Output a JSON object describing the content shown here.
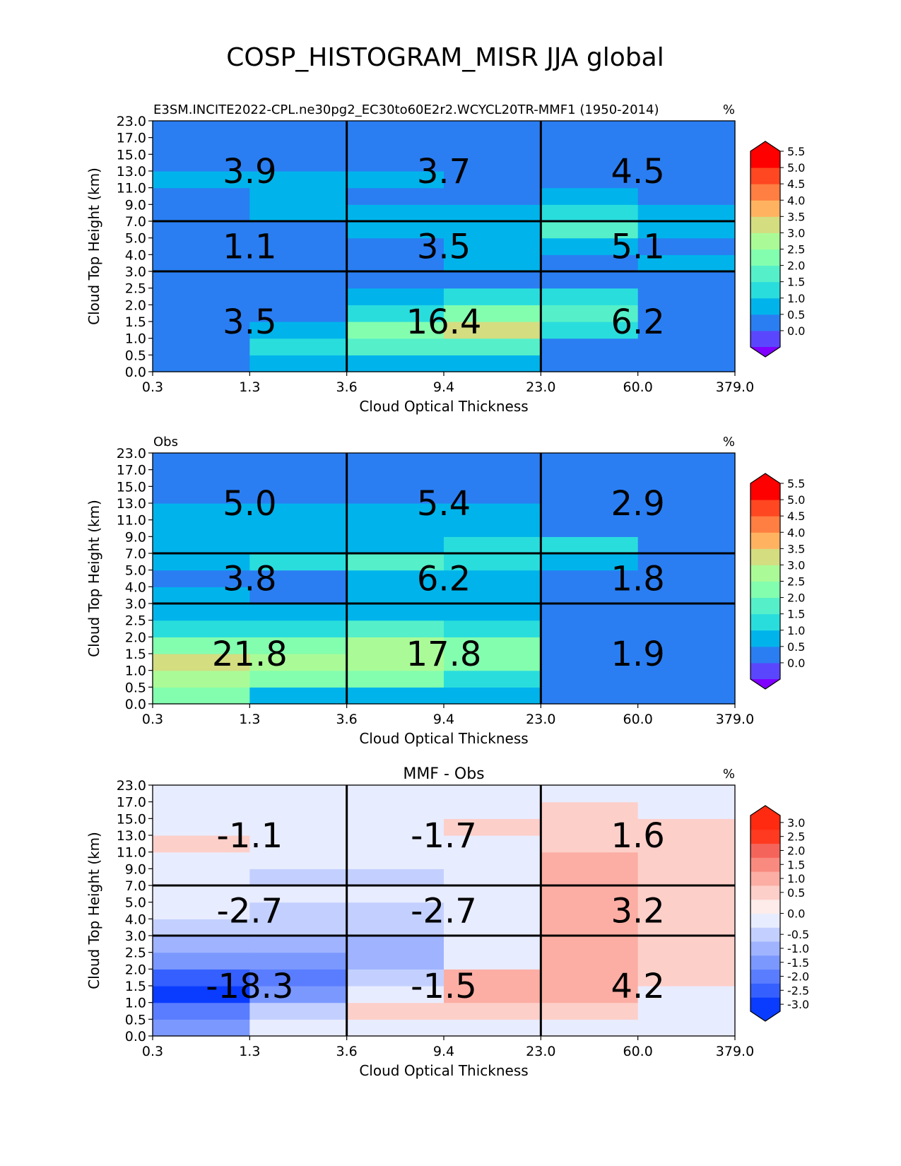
{
  "figure": {
    "title": "COSP_HISTOGRAM_MISR JJA global"
  },
  "chart_data": [
    {
      "type": "heatmap",
      "title": "",
      "left_label": "E3SM.INCITE2022-CPL.ne30pg2_EC30to60E2r2.WCYCL20TR-MMF1 (1950-2014)",
      "units": "%",
      "xlabel": "Cloud Optical Thickness",
      "ylabel": "Cloud Top Height (km)",
      "x_ticks": [
        "0.3",
        "1.3",
        "3.6",
        "9.4",
        "23.0",
        "60.0",
        "379.0"
      ],
      "y_ticks": [
        "0.0",
        "0.5",
        "1.0",
        "1.5",
        "2.0",
        "2.5",
        "3.0",
        "4.0",
        "5.0",
        "7.0",
        "9.0",
        "11.0",
        "13.0",
        "15.0",
        "17.0",
        "23.0"
      ],
      "cell_values": [
        [
          0.2,
          0.5,
          0.5,
          0.5,
          0.2,
          0.2
        ],
        [
          0.2,
          1.2,
          1.7,
          1.7,
          0.2,
          0.2
        ],
        [
          0.2,
          0.7,
          2.3,
          3.2,
          1.2,
          0.2
        ],
        [
          0.2,
          0.2,
          1.2,
          2.3,
          1.7,
          0.2
        ],
        [
          0.2,
          0.2,
          0.7,
          1.2,
          1.2,
          0.2
        ],
        [
          0.2,
          0.2,
          0.2,
          0.2,
          0.2,
          0.2
        ],
        [
          0.2,
          0.2,
          0.2,
          0.7,
          0.2,
          0.7
        ],
        [
          0.2,
          0.2,
          0.2,
          0.7,
          0.7,
          0.2
        ],
        [
          0.2,
          0.2,
          0.7,
          0.7,
          1.7,
          0.7
        ],
        [
          0.2,
          0.7,
          0.7,
          0.7,
          1.2,
          0.7
        ],
        [
          0.2,
          0.7,
          0.2,
          0.2,
          0.7,
          0.2
        ],
        [
          0.7,
          0.7,
          0.7,
          0.2,
          0.2,
          0.2
        ],
        [
          0.2,
          0.2,
          0.2,
          0.2,
          0.2,
          0.2
        ],
        [
          0.2,
          0.2,
          0.2,
          0.2,
          0.2,
          0.2
        ],
        [
          0.2,
          0.2,
          0.2,
          0.2,
          0.2,
          0.2
        ]
      ],
      "box_values": [
        [
          "3.5",
          "16.4",
          "6.2"
        ],
        [
          "1.1",
          "3.5",
          "5.1"
        ],
        [
          "3.9",
          "3.7",
          "4.5"
        ]
      ],
      "colorbar": {
        "levels": [
          -0.5,
          0.0,
          0.5,
          1.0,
          1.5,
          2.0,
          2.5,
          3.0,
          3.5,
          4.0,
          4.5,
          5.0,
          5.5
        ],
        "tick_labels": [
          "0.0",
          "0.5",
          "1.0",
          "1.5",
          "2.0",
          "2.5",
          "3.0",
          "3.5",
          "4.0",
          "4.5",
          "5.0",
          "5.5"
        ],
        "tick_values": [
          0.0,
          0.5,
          1.0,
          1.5,
          2.0,
          2.5,
          3.0,
          3.5,
          4.0,
          4.5,
          5.0,
          5.5
        ],
        "under_color": "#7f00ff",
        "over_color": "#ff0000",
        "colors": [
          "#5a47fd",
          "#2a7ef2",
          "#00b4eb",
          "#2adddd",
          "#55f0c9",
          "#83feaf",
          "#aafb97",
          "#d4dd80",
          "#ffb360",
          "#ff7e41",
          "#ff4721",
          "#ff0000"
        ]
      }
    },
    {
      "type": "heatmap",
      "title": "",
      "left_label": "Obs",
      "units": "%",
      "xlabel": "Cloud Optical Thickness",
      "ylabel": "Cloud Top Height (km)",
      "x_ticks": [
        "0.3",
        "1.3",
        "3.6",
        "9.4",
        "23.0",
        "60.0",
        "379.0"
      ],
      "y_ticks": [
        "0.0",
        "0.5",
        "1.0",
        "1.5",
        "2.0",
        "2.5",
        "3.0",
        "4.0",
        "5.0",
        "7.0",
        "9.0",
        "11.0",
        "13.0",
        "15.0",
        "17.0",
        "23.0"
      ],
      "cell_values": [
        [
          2.3,
          0.7,
          0.7,
          0.7,
          0.2,
          0.2
        ],
        [
          2.8,
          2.3,
          2.3,
          1.2,
          0.2,
          0.2
        ],
        [
          3.2,
          2.8,
          2.8,
          2.3,
          0.2,
          0.2
        ],
        [
          2.3,
          2.3,
          2.8,
          2.3,
          0.2,
          0.2
        ],
        [
          1.2,
          1.2,
          1.7,
          1.2,
          0.2,
          0.2
        ],
        [
          0.7,
          0.7,
          0.7,
          0.7,
          0.2,
          0.2
        ],
        [
          0.7,
          0.2,
          0.7,
          0.7,
          0.2,
          0.2
        ],
        [
          0.2,
          0.2,
          0.7,
          0.7,
          0.2,
          0.2
        ],
        [
          0.7,
          1.2,
          1.7,
          1.2,
          0.7,
          0.2
        ],
        [
          0.7,
          0.7,
          0.7,
          1.2,
          1.2,
          0.2
        ],
        [
          0.7,
          0.7,
          0.7,
          0.7,
          0.2,
          0.2
        ],
        [
          0.7,
          0.7,
          0.7,
          0.7,
          0.2,
          0.2
        ],
        [
          0.2,
          0.2,
          0.2,
          0.2,
          0.2,
          0.2
        ],
        [
          0.2,
          0.2,
          0.2,
          0.2,
          0.2,
          0.2
        ],
        [
          0.2,
          0.2,
          0.2,
          0.2,
          0.2,
          0.2
        ]
      ],
      "box_values": [
        [
          "21.8",
          "17.8",
          "1.9"
        ],
        [
          "3.8",
          "6.2",
          "1.8"
        ],
        [
          "5.0",
          "5.4",
          "2.9"
        ]
      ],
      "colorbar": {
        "levels": [
          -0.5,
          0.0,
          0.5,
          1.0,
          1.5,
          2.0,
          2.5,
          3.0,
          3.5,
          4.0,
          4.5,
          5.0,
          5.5
        ],
        "tick_labels": [
          "0.0",
          "0.5",
          "1.0",
          "1.5",
          "2.0",
          "2.5",
          "3.0",
          "3.5",
          "4.0",
          "4.5",
          "5.0",
          "5.5"
        ],
        "tick_values": [
          0.0,
          0.5,
          1.0,
          1.5,
          2.0,
          2.5,
          3.0,
          3.5,
          4.0,
          4.5,
          5.0,
          5.5
        ],
        "under_color": "#7f00ff",
        "over_color": "#ff0000",
        "colors": [
          "#5a47fd",
          "#2a7ef2",
          "#00b4eb",
          "#2adddd",
          "#55f0c9",
          "#83feaf",
          "#aafb97",
          "#d4dd80",
          "#ffb360",
          "#ff7e41",
          "#ff4721",
          "#ff0000"
        ]
      }
    },
    {
      "type": "heatmap",
      "title": "MMF - Obs",
      "left_label": "",
      "units": "%",
      "xlabel": "Cloud Optical Thickness",
      "ylabel": "Cloud Top Height (km)",
      "x_ticks": [
        "0.3",
        "1.3",
        "3.6",
        "9.4",
        "23.0",
        "60.0",
        "379.0"
      ],
      "y_ticks": [
        "0.0",
        "0.5",
        "1.0",
        "1.5",
        "2.0",
        "2.5",
        "3.0",
        "4.0",
        "5.0",
        "7.0",
        "9.0",
        "11.0",
        "13.0",
        "15.0",
        "17.0",
        "23.0"
      ],
      "cell_values": [
        [
          -1.6,
          -0.1,
          -0.1,
          -0.1,
          -0.1,
          -0.1
        ],
        [
          -2.1,
          -0.6,
          0.3,
          0.3,
          0.3,
          -0.1
        ],
        [
          -2.9,
          -1.6,
          -0.1,
          1.2,
          0.8,
          -0.1
        ],
        [
          -2.6,
          -2.1,
          -0.6,
          0.8,
          1.2,
          0.3
        ],
        [
          -1.6,
          -1.6,
          -1.1,
          -0.1,
          0.8,
          0.3
        ],
        [
          -1.1,
          -1.1,
          -1.1,
          -0.1,
          0.8,
          0.3
        ],
        [
          -0.6,
          -0.6,
          -0.6,
          -0.1,
          0.8,
          0.3
        ],
        [
          -0.1,
          -0.6,
          -0.6,
          -0.1,
          0.8,
          0.3
        ],
        [
          -0.1,
          -0.1,
          -0.1,
          -0.1,
          0.8,
          0.3
        ],
        [
          -0.1,
          -0.6,
          -0.6,
          -0.1,
          0.8,
          0.3
        ],
        [
          -0.1,
          -0.1,
          -0.1,
          -0.1,
          0.8,
          0.3
        ],
        [
          0.3,
          -0.1,
          -0.1,
          -0.1,
          0.3,
          0.3
        ],
        [
          -0.1,
          -0.1,
          -0.1,
          0.3,
          0.3,
          0.3
        ],
        [
          -0.1,
          -0.1,
          -0.1,
          -0.1,
          0.3,
          -0.1
        ],
        [
          -0.1,
          -0.1,
          -0.1,
          -0.1,
          -0.1,
          -0.1
        ]
      ],
      "box_values": [
        [
          "-18.3",
          "-1.5",
          "4.2"
        ],
        [
          "-2.7",
          "-2.7",
          "3.2"
        ],
        [
          "-1.1",
          "-1.7",
          "1.6"
        ]
      ],
      "colorbar": {
        "levels": [
          -3.25,
          -2.75,
          -2.25,
          -1.75,
          -1.25,
          -0.75,
          -0.25,
          0.0,
          0.25,
          0.75,
          1.25,
          1.75,
          2.25,
          2.75,
          3.25
        ],
        "tick_labels": [
          "-3.0",
          "-2.5",
          "-2.0",
          "-1.5",
          "-1.0",
          "-0.5",
          "0.0",
          "0.5",
          "1.0",
          "1.5",
          "2.0",
          "2.5",
          "3.0"
        ],
        "tick_values": [
          -3.0,
          -2.5,
          -2.0,
          -1.5,
          -1.0,
          -0.5,
          0.0,
          0.5,
          1.0,
          1.5,
          2.0,
          2.5,
          3.0
        ],
        "under_color": "#0a3cff",
        "over_color": "#ff2a10",
        "colors": [
          "#0a3cff",
          "#3560ff",
          "#5a7dff",
          "#7b98ff",
          "#9fb3ff",
          "#c3d0ff",
          "#e8ecff",
          "#fdecea",
          "#fdcfc9",
          "#fcaea4",
          "#f98a7f",
          "#f5645a",
          "#ff3a20",
          "#ff2a10"
        ]
      }
    }
  ]
}
